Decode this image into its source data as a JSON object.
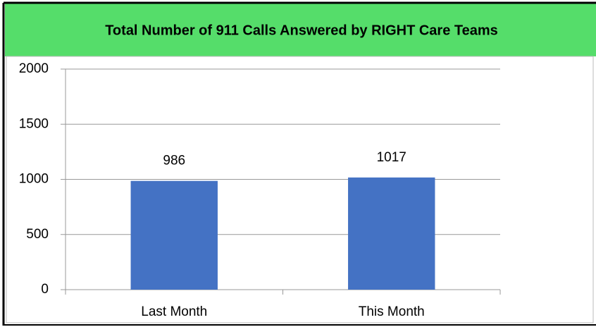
{
  "chart_data": {
    "type": "bar",
    "title": "Total Number of 911 Calls Answered by RIGHT Care Teams",
    "categories": [
      "Last Month",
      "This Month"
    ],
    "values": [
      986,
      1017
    ],
    "color": "#4472c4",
    "ylim": [
      0,
      2000
    ],
    "yticks": [
      0,
      500,
      1000,
      1500,
      2000
    ],
    "grid": true
  }
}
